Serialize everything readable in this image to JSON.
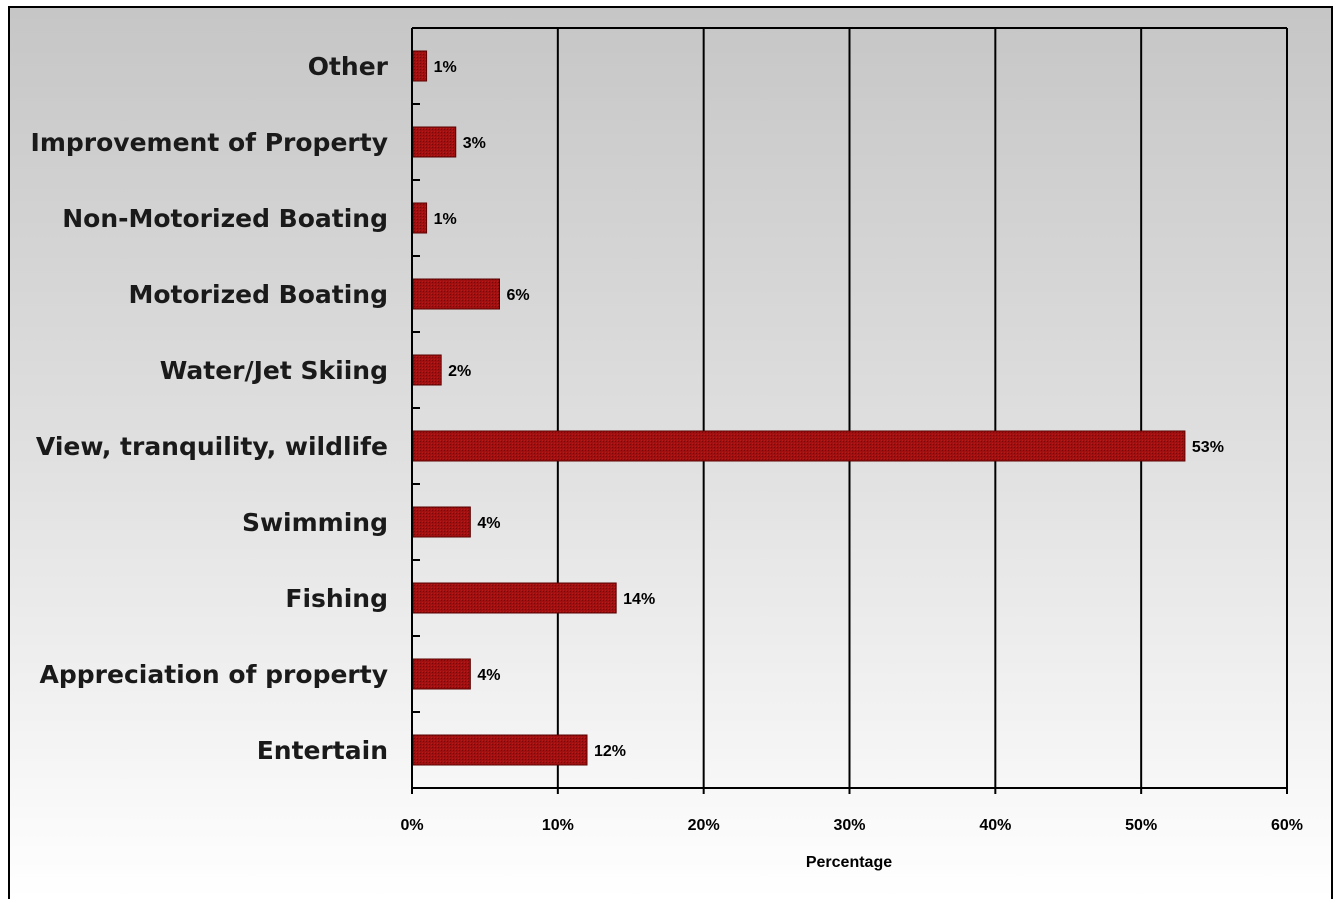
{
  "chart_data": {
    "type": "bar",
    "orientation": "horizontal",
    "categories": [
      "Other",
      "Improvement of Property",
      "Non-Motorized Boating",
      "Motorized Boating",
      "Water/Jet Skiing",
      "View, tranquility, wildlife",
      "Swimming",
      "Fishing",
      "Appreciation of property",
      "Entertain"
    ],
    "values": [
      1,
      3,
      1,
      6,
      2,
      53,
      4,
      14,
      4,
      12
    ],
    "data_labels": [
      "1%",
      "3%",
      "1%",
      "6%",
      "2%",
      "53%",
      "4%",
      "14%",
      "4%",
      "12%"
    ],
    "xlim": [
      0,
      60
    ],
    "xticks": [
      0,
      10,
      20,
      30,
      40,
      50,
      60
    ],
    "xtick_labels": [
      "0%",
      "10%",
      "20%",
      "30%",
      "40%",
      "50%",
      "60%"
    ],
    "xlabel": "Percentage",
    "ylabel": "",
    "title": "",
    "grid": "vertical",
    "legend": "none",
    "colors": {
      "bar_fill": "#a01010",
      "bar_edge": "#5a0000",
      "background_top": "#c6c6c6",
      "background_bottom": "#ffffff"
    }
  }
}
